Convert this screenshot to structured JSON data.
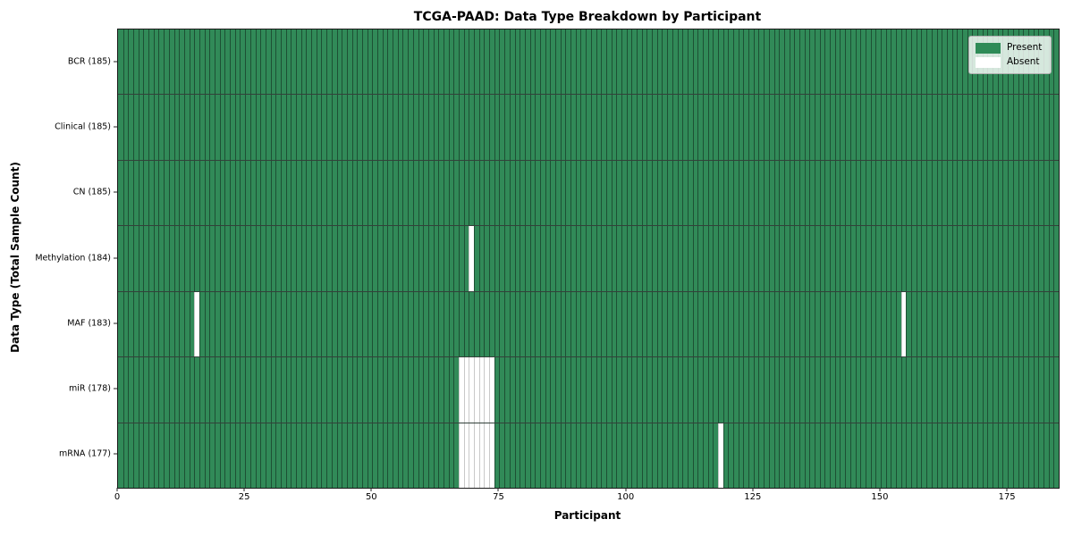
{
  "chart_data": {
    "type": "heatmap",
    "title": "TCGA-PAAD: Data Type Breakdown by Participant",
    "xlabel": "Participant",
    "ylabel": "Data Type (Total Sample Count)",
    "n_participants": 185,
    "xlim": [
      0,
      185
    ],
    "x_ticks": [
      0,
      25,
      50,
      75,
      100,
      125,
      150,
      175
    ],
    "grid": false,
    "legend": {
      "position": "upper right",
      "items": [
        {
          "label": "Present",
          "color": "#2e8b57"
        },
        {
          "label": "Absent",
          "color": "#ffffff"
        }
      ]
    },
    "rows": [
      {
        "label": "BCR (185)",
        "data_type": "BCR",
        "present_count": 185,
        "absent_participants": []
      },
      {
        "label": "Clinical (185)",
        "data_type": "Clinical",
        "present_count": 185,
        "absent_participants": []
      },
      {
        "label": "CN (185)",
        "data_type": "CN",
        "present_count": 185,
        "absent_participants": []
      },
      {
        "label": "Methylation (184)",
        "data_type": "Methylation",
        "present_count": 184,
        "absent_participants": [
          69
        ]
      },
      {
        "label": "MAF (183)",
        "data_type": "MAF",
        "present_count": 183,
        "absent_participants": [
          15,
          154
        ]
      },
      {
        "label": "miR (178)",
        "data_type": "miR",
        "present_count": 178,
        "absent_participants": [
          67,
          68,
          69,
          70,
          71,
          72,
          73
        ]
      },
      {
        "label": "mRNA (177)",
        "data_type": "mRNA",
        "present_count": 177,
        "absent_participants": [
          67,
          68,
          69,
          70,
          71,
          72,
          73,
          118
        ]
      }
    ],
    "colors": {
      "present": "#318a58",
      "present_edge": "#1d5034",
      "legend_present": "#2e8b57",
      "absent": "#ffffff",
      "absent_edge": "#c9c9c9",
      "row_divider": "#33413a",
      "plot_border": "#1a1a1a"
    }
  }
}
